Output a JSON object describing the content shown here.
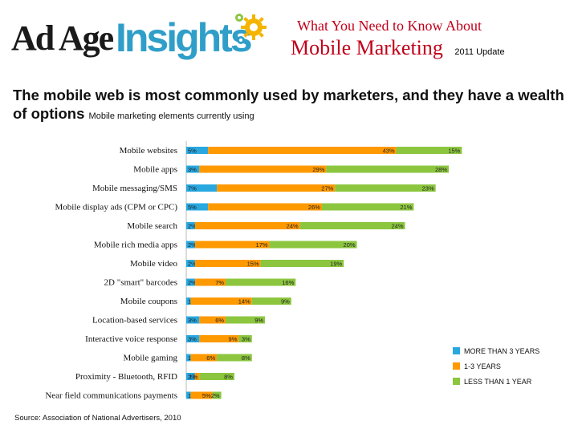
{
  "logo": {
    "adage": "Ad Age",
    "insights": "Insights"
  },
  "header": {
    "top_line": "What You Need to Know About",
    "main_line": "Mobile Marketing",
    "update": "2011 Update"
  },
  "headline": {
    "main": "The mobile web is most commonly used by marketers, and they have a wealth of options",
    "sub": "Mobile marketing elements currently using"
  },
  "source": "Source: Association of National Advertisers, 2010",
  "chart_data": {
    "type": "bar",
    "stacked": true,
    "orientation": "horizontal",
    "categories": [
      "Mobile websites",
      "Mobile apps",
      "Mobile messaging/SMS",
      "Mobile display ads (CPM or CPC)",
      "Mobile search",
      "Mobile rich media apps",
      "Mobile video",
      "2D \"smart\" barcodes",
      "Mobile coupons",
      "Location-based services",
      "Interactive voice response",
      "Mobile gaming",
      "Proximity - Bluetooth, RFID",
      "Near field communications payments"
    ],
    "series": [
      {
        "name": "MORE THAN 3 YEARS",
        "color": "#29a8e0",
        "values": [
          5,
          3,
          7,
          5,
          2,
          2,
          2,
          2,
          1,
          3,
          3,
          1,
          2,
          1
        ],
        "labels": [
          "5%",
          "3%",
          "7%",
          "5%",
          "2%",
          "2%",
          "2%",
          "2%",
          "1%",
          "3%",
          "3%",
          "1%",
          "2%",
          "1%"
        ]
      },
      {
        "name": "1-3 YEARS",
        "color": "#ff9900",
        "values": [
          43,
          29,
          27,
          26,
          24,
          17,
          15,
          7,
          14,
          6,
          9,
          6,
          1,
          5
        ],
        "labels": [
          "43%",
          "29%",
          "27%",
          "26%",
          "24%",
          "17%",
          "15%",
          "7%",
          "14%",
          "6%",
          "9%",
          "6%",
          "1%",
          "5%"
        ]
      },
      {
        "name": "LESS THAN 1 YEAR",
        "color": "#8cc63f",
        "values": [
          15,
          28,
          23,
          21,
          24,
          20,
          19,
          16,
          9,
          9,
          3,
          8,
          8,
          2
        ],
        "labels": [
          "15%",
          "28%",
          "23%",
          "21%",
          "24%",
          "20%",
          "19%",
          "16%",
          "9%",
          "9%",
          "3%",
          "8%",
          "8%",
          "2%"
        ]
      }
    ],
    "legend_position": "right",
    "grid": false
  }
}
